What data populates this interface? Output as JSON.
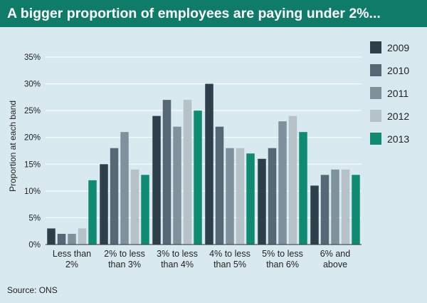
{
  "title": "A bigger proportion of employees are paying under 2%...",
  "source": "Source: ONS",
  "chart_data": {
    "type": "bar",
    "title": "A bigger proportion of employees are paying under 2%...",
    "ylabel": "Proportion at each band",
    "xlabel": "",
    "ylim": [
      0,
      35
    ],
    "yticks": [
      "0%",
      "5%",
      "10%",
      "15%",
      "20%",
      "25%",
      "30%",
      "35%"
    ],
    "grid": true,
    "legend": "right",
    "categories": [
      [
        "Less than",
        "2%"
      ],
      [
        "2% to less",
        "than 3%"
      ],
      [
        "3% to less",
        "than 4%"
      ],
      [
        "4% to less",
        "than 5%"
      ],
      [
        "5% to less",
        "than 6%"
      ],
      [
        "6% and",
        "above"
      ]
    ],
    "series": [
      {
        "name": "2009",
        "color": "#2e3f4c",
        "values": [
          3,
          15,
          24,
          30,
          16,
          11
        ]
      },
      {
        "name": "2010",
        "color": "#556876",
        "values": [
          2,
          18,
          27,
          22,
          18,
          13
        ]
      },
      {
        "name": "2011",
        "color": "#7f919c",
        "values": [
          2,
          21,
          22,
          18,
          23,
          14
        ]
      },
      {
        "name": "2012",
        "color": "#b6c2c8",
        "values": [
          3,
          14,
          27,
          18,
          24,
          14
        ]
      },
      {
        "name": "2013",
        "color": "#0f8a73",
        "values": [
          12,
          13,
          25,
          17,
          21,
          13
        ]
      }
    ]
  }
}
